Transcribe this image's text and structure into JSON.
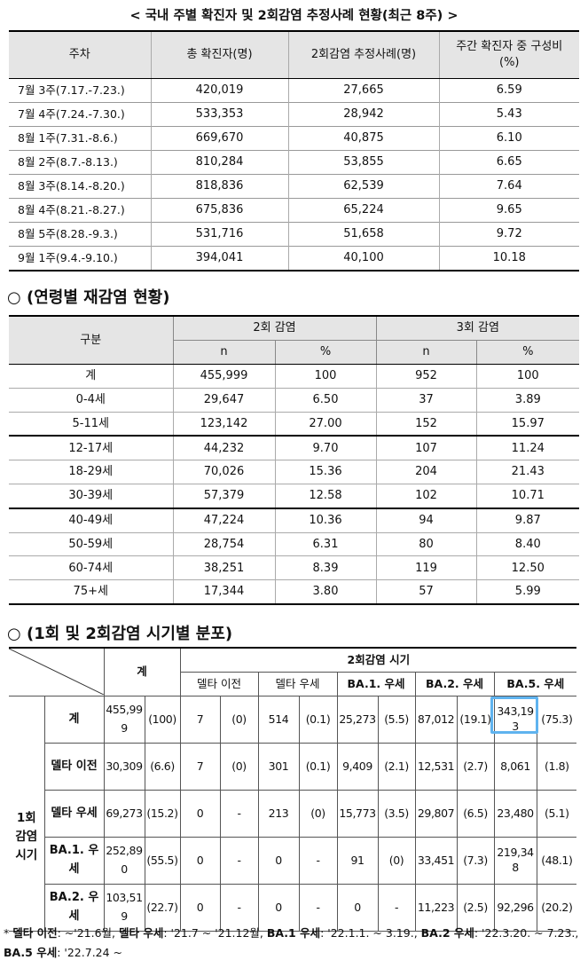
{
  "table1": {
    "title": "< 국내 주별 확진자 및 2회감염 추정사례 현황(최근 8주) >",
    "headers": [
      "주차",
      "총 확진자(명)",
      "2회감염 추정사례(명)",
      "주간 확진자 중 구성비 (%)"
    ],
    "rows": [
      [
        "7월 3주(7.17.-7.23.)",
        "420,019",
        "27,665",
        "6.59"
      ],
      [
        "7월 4주(7.24.-7.30.)",
        "533,353",
        "28,942",
        "5.43"
      ],
      [
        "8월 1주(7.31.-8.6.)",
        "669,670",
        "40,875",
        "6.10"
      ],
      [
        "8월 2주(8.7.-8.13.)",
        "810,284",
        "53,855",
        "6.65"
      ],
      [
        "8월 3주(8.14.-8.20.)",
        "818,836",
        "62,539",
        "7.64"
      ],
      [
        "8월 4주(8.21.-8.27.)",
        "675,836",
        "65,224",
        "9.65"
      ],
      [
        "8월 5주(8.28.-9.3.)",
        "531,716",
        "51,658",
        "9.72"
      ],
      [
        "9월 1주(9.4.-9.10.)",
        "394,041",
        "40,100",
        "10.18"
      ]
    ]
  },
  "table2": {
    "title": "○ (연령별 재감염 현황)",
    "header_group": "구분",
    "group_2": "2회 감염",
    "group_3": "3회 감염",
    "sub": [
      "n",
      "%",
      "n",
      "%"
    ],
    "rows": [
      [
        "계",
        "455,999",
        "100",
        "952",
        "100"
      ],
      [
        "0-4세",
        "29,647",
        "6.50",
        "37",
        "3.89"
      ],
      [
        "5-11세",
        "123,142",
        "27.00",
        "152",
        "15.97"
      ],
      [
        "12-17세",
        "44,232",
        "9.70",
        "107",
        "11.24"
      ],
      [
        "18-29세",
        "70,026",
        "15.36",
        "204",
        "21.43"
      ],
      [
        "30-39세",
        "57,379",
        "12.58",
        "102",
        "10.71"
      ],
      [
        "40-49세",
        "47,224",
        "10.36",
        "94",
        "9.87"
      ],
      [
        "50-59세",
        "28,754",
        "6.31",
        "80",
        "8.40"
      ],
      [
        "60-74세",
        "38,251",
        "8.39",
        "119",
        "12.50"
      ],
      [
        "75+세",
        "17,344",
        "3.80",
        "57",
        "5.99"
      ]
    ]
  },
  "table3": {
    "title": "○ (1회 및 2회감염 시기별 분포)",
    "total_header": "계",
    "second_period_header": "2회감염 시기",
    "period_headers": [
      "델타 이전",
      "델타 우세",
      "BA.1. 우세",
      "BA.2. 우세",
      "BA.5. 우세"
    ],
    "first_period_label": "1회 감염 시기",
    "rows": [
      {
        "label": "계",
        "cells": [
          "455,999",
          "(100)",
          "7",
          "(0)",
          "514",
          "(0.1)",
          "25,273",
          "(5.5)",
          "87,012",
          "(19.1)",
          "343,193",
          "(75.3)"
        ]
      },
      {
        "label": "델타 이전",
        "cells": [
          "30,309",
          "(6.6)",
          "7",
          "(0)",
          "301",
          "(0.1)",
          "9,409",
          "(2.1)",
          "12,531",
          "(2.7)",
          "8,061",
          "(1.8)"
        ]
      },
      {
        "label": "델타 우세",
        "cells": [
          "69,273",
          "(15.2)",
          "0",
          "-",
          "213",
          "(0)",
          "15,773",
          "(3.5)",
          "29,807",
          "(6.5)",
          "23,480",
          "(5.1)"
        ]
      },
      {
        "label": "BA.1. 우세",
        "cells": [
          "252,890",
          "(55.5)",
          "0",
          "-",
          "0",
          "-",
          "91",
          "(0)",
          "33,451",
          "(7.3)",
          "219,348",
          "(48.1)"
        ]
      },
      {
        "label": "BA.2. 우세",
        "cells": [
          "103,519",
          "(22.7)",
          "0",
          "-",
          "0",
          "-",
          "0",
          "-",
          "11,223",
          "(2.5)",
          "92,296",
          "(20.2)"
        ]
      }
    ]
  },
  "footnote": {
    "prefix": "* ",
    "items": [
      {
        "label": "델타 이전",
        "value": ": ~'21.6월, "
      },
      {
        "label": "델타 우세",
        "value": ": '21.7 ~ '21.12월, "
      },
      {
        "label": "BA.1 우세",
        "value": ": '22.1.1. ~ 3.19., "
      },
      {
        "label": "BA.2 우세",
        "value": ": '22.3.20. ~ 7.23., "
      },
      {
        "label": "BA.5 우세",
        "value": ": '22.7.24 ~"
      }
    ]
  }
}
